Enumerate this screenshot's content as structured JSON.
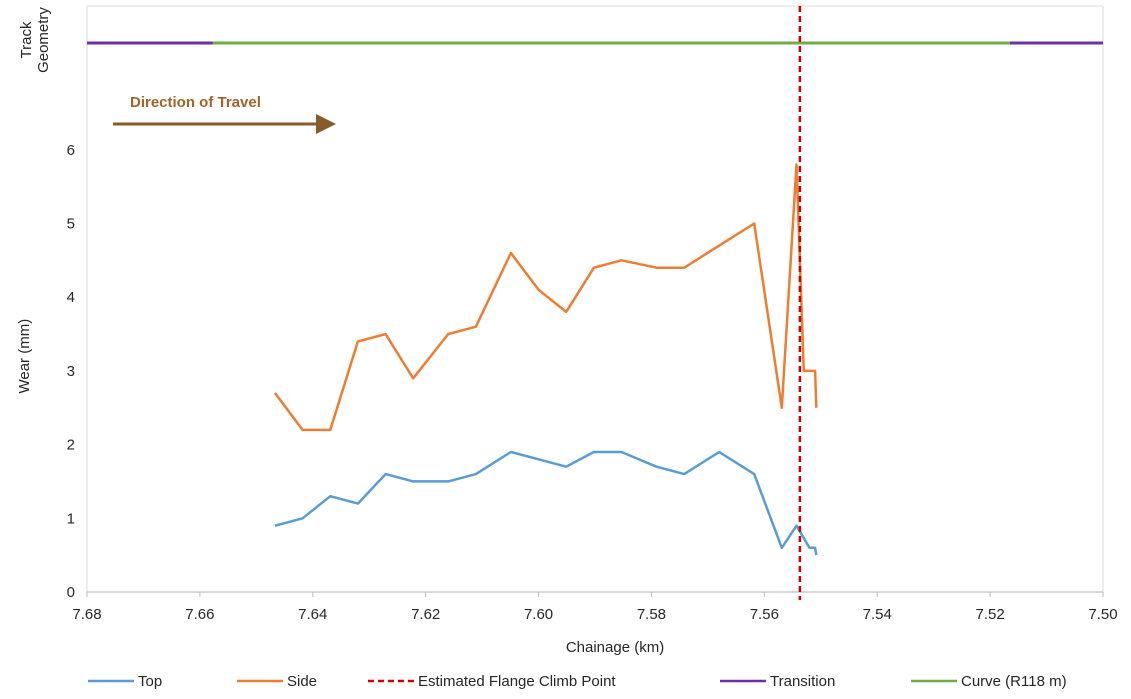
{
  "chart_data": {
    "type": "line",
    "xlabel": "Chainage (km)",
    "ylabel": "Wear (mm)",
    "top_panel_label": [
      "Track",
      "Geometry"
    ],
    "xlim": [
      7.68,
      7.5
    ],
    "ylim": [
      0,
      7
    ],
    "x_ticks": [
      "7.68",
      "7.66",
      "7.64",
      "7.62",
      "7.60",
      "7.58",
      "7.56",
      "7.54",
      "7.52",
      "7.50"
    ],
    "y_ticks": [
      "0",
      "1",
      "2",
      "3",
      "4",
      "5",
      "6"
    ],
    "series": [
      {
        "name": "Top",
        "color": "#5b9bd5",
        "x": [
          7.6467,
          7.6418,
          7.6369,
          7.632,
          7.6271,
          7.6222,
          7.616,
          7.6111,
          7.6049,
          7.6,
          7.5951,
          7.5902,
          7.5853,
          7.5791,
          7.5742,
          7.568,
          7.5618,
          7.5569,
          7.5543,
          7.552,
          7.551,
          7.5508
        ],
        "y": [
          0.9,
          1.0,
          1.3,
          1.2,
          1.6,
          1.5,
          1.5,
          1.6,
          1.9,
          1.8,
          1.7,
          1.9,
          1.9,
          1.7,
          1.6,
          1.9,
          1.6,
          0.6,
          0.9,
          0.6,
          0.6,
          0.5
        ]
      },
      {
        "name": "Side",
        "color": "#ed7d31",
        "x": [
          7.6467,
          7.6418,
          7.6369,
          7.632,
          7.6271,
          7.6222,
          7.616,
          7.6111,
          7.6049,
          7.6,
          7.5951,
          7.5902,
          7.5853,
          7.5791,
          7.5742,
          7.568,
          7.5618,
          7.5569,
          7.5543,
          7.553,
          7.551,
          7.5508
        ],
        "y": [
          2.7,
          2.2,
          2.2,
          3.4,
          3.5,
          2.9,
          3.5,
          3.6,
          4.6,
          4.1,
          3.8,
          4.4,
          4.5,
          4.4,
          4.4,
          4.7,
          5.0,
          2.5,
          5.8,
          3.0,
          3.0,
          2.5
        ]
      }
    ],
    "flange_climb": {
      "name": "Estimated Flange Climb Point",
      "x": 7.5537,
      "color": "#cc0000"
    },
    "track_geometry": [
      {
        "name": "Transition",
        "from": 7.68,
        "to": 7.6577,
        "color": "#7030a0"
      },
      {
        "name": "Curve (R118 m)",
        "from": 7.6577,
        "to": 7.5165,
        "color": "#70ad47"
      },
      {
        "name": "Transition",
        "from": 7.5165,
        "to": 7.5,
        "color": "#7030a0"
      }
    ],
    "annotation": {
      "text": "Direction of Travel",
      "color": "#a0642a"
    },
    "legend": [
      {
        "name": "Top",
        "color": "#5b9bd5",
        "style": "solid"
      },
      {
        "name": "Side",
        "color": "#ed7d31",
        "style": "solid"
      },
      {
        "name": "Estimated Flange Climb Point",
        "color": "#cc0000",
        "style": "dashed"
      },
      {
        "name": "Transition",
        "color": "#7030a0",
        "style": "solid"
      },
      {
        "name": "Curve (R118 m)",
        "color": "#70ad47",
        "style": "solid"
      }
    ],
    "legend_position": "bottom",
    "grid": false
  }
}
